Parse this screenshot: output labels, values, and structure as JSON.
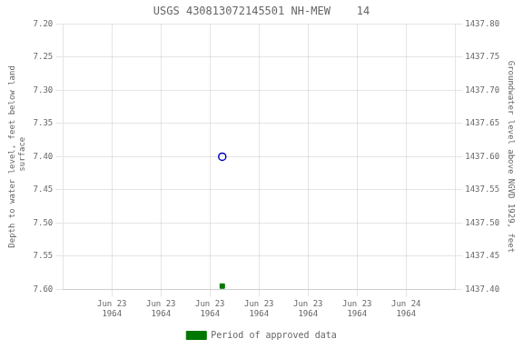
{
  "chart_data": {
    "type": "scatter",
    "title": "USGS 430813072145501 NH-MEW    14",
    "y_label": "Depth to water level, feet below land\n surface",
    "y2_label": "Groundwater level above NGVD 1929, feet",
    "x": [
      9
    ],
    "series": [
      {
        "color": "#0000bb",
        "marker": "open_circle",
        "values": [
          7.4
        ]
      },
      {
        "name": "Period of approved data",
        "color": "#007700",
        "marker": "square",
        "values": [
          7.595
        ]
      }
    ],
    "xlim": [
      -4,
      28
    ],
    "xticks": [
      {
        "value": 0,
        "label": "Jun 23\n1964"
      },
      {
        "value": 4,
        "label": "Jun 23\n1964"
      },
      {
        "value": 8,
        "label": "Jun 23\n1964"
      },
      {
        "value": 12,
        "label": "Jun 23\n1964"
      },
      {
        "value": 16,
        "label": "Jun 23\n1964"
      },
      {
        "value": 20,
        "label": "Jun 23\n1964"
      },
      {
        "value": 24,
        "label": "Jun 24\n1964"
      }
    ],
    "ylim": [
      7.6,
      7.2
    ],
    "yticks": [
      {
        "value": 7.2,
        "label": "7.20"
      },
      {
        "value": 7.25,
        "label": "7.25"
      },
      {
        "value": 7.3,
        "label": "7.30"
      },
      {
        "value": 7.35,
        "label": "7.35"
      },
      {
        "value": 7.4,
        "label": "7.40"
      },
      {
        "value": 7.45,
        "label": "7.45"
      },
      {
        "value": 7.5,
        "label": "7.50"
      },
      {
        "value": 7.55,
        "label": "7.55"
      },
      {
        "value": 7.6,
        "label": "7.60"
      }
    ],
    "y2lim": [
      1437.4,
      1437.8
    ],
    "y2ticks": [
      {
        "value": 1437.8,
        "label": "1437.80"
      },
      {
        "value": 1437.75,
        "label": "1437.75"
      },
      {
        "value": 1437.7,
        "label": "1437.70"
      },
      {
        "value": 1437.65,
        "label": "1437.65"
      },
      {
        "value": 1437.6,
        "label": "1437.60"
      },
      {
        "value": 1437.55,
        "label": "1437.55"
      },
      {
        "value": 1437.5,
        "label": "1437.50"
      },
      {
        "value": 1437.45,
        "label": "1437.45"
      },
      {
        "value": 1437.4,
        "label": "1437.40"
      }
    ],
    "grid": true,
    "legend": "bottom"
  }
}
